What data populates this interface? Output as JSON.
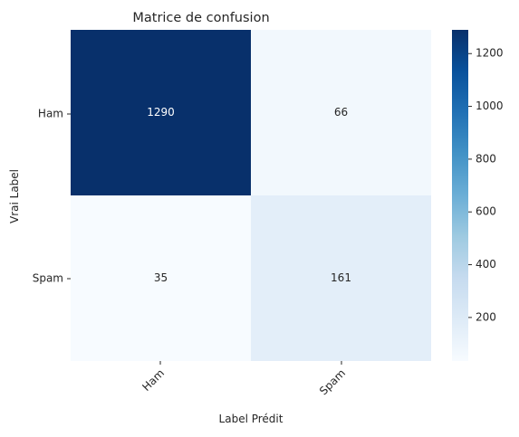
{
  "chart_data": {
    "type": "heatmap",
    "title": "Matrice de confusion",
    "xlabel": "Label Prédit",
    "ylabel": "Vrai Label",
    "x_categories": [
      "Ham",
      "Spam"
    ],
    "y_categories": [
      "Ham",
      "Spam"
    ],
    "values": [
      [
        1290,
        66
      ],
      [
        35,
        161
      ]
    ],
    "annotations": [
      "1290",
      "66",
      "35",
      "161"
    ],
    "colormap": "Blues",
    "colorbar": {
      "range": [
        35,
        1290
      ],
      "ticks": [
        200,
        400,
        600,
        800,
        1000,
        1200
      ],
      "tick_labels": [
        "200",
        "400",
        "600",
        "800",
        "1000",
        "1200"
      ]
    },
    "colors": {
      "low": "#f7fbff",
      "high": "#08306b",
      "annotation_light": "#ffffff",
      "annotation_dark": "#262626"
    }
  }
}
